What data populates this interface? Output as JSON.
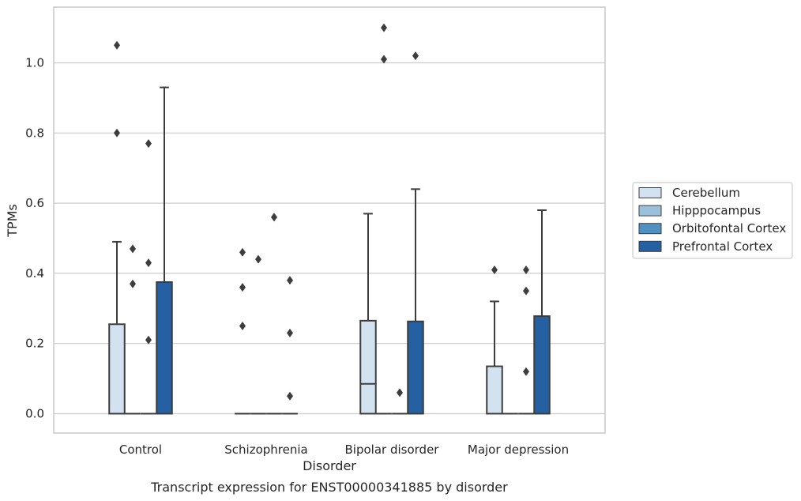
{
  "chart_data": {
    "type": "box",
    "caption": "Transcript expression for ENST00000341885 by disorder",
    "xlabel": "Disorder",
    "ylabel": "TPMs",
    "ylim": [
      -0.053,
      1.16
    ],
    "yticks": [
      0.0,
      0.2,
      0.4,
      0.6,
      0.8,
      1.0
    ],
    "ytick_labels": [
      "0.0",
      "0.2",
      "0.4",
      "0.6",
      "0.8",
      "1.0"
    ],
    "grid": "horizontal",
    "legend_placement": "right",
    "categories": [
      "Control",
      "Schizophrenia",
      "Bipolar disorder",
      "Major depression"
    ],
    "series": [
      {
        "name": "Cerebellum",
        "color": "#d3e2f1",
        "boxes": [
          {
            "q1": 0,
            "median": 0,
            "q3": 0.255,
            "whisker_low": 0,
            "whisker_high": 0.49,
            "outliers": [
              0.8,
              1.05
            ]
          },
          {
            "q1": 0,
            "median": 0,
            "q3": 0,
            "whisker_low": 0,
            "whisker_high": 0,
            "outliers": [
              0.25,
              0.36,
              0.46
            ]
          },
          {
            "q1": 0,
            "median": 0.085,
            "q3": 0.265,
            "whisker_low": 0,
            "whisker_high": 0.57,
            "outliers": []
          },
          {
            "q1": 0,
            "median": 0,
            "q3": 0.135,
            "whisker_low": 0,
            "whisker_high": 0.32,
            "outliers": [
              0.41
            ]
          }
        ]
      },
      {
        "name": "Hipppocampus",
        "color": "#9ac0dc",
        "boxes": [
          {
            "q1": 0,
            "median": 0,
            "q3": 0,
            "whisker_low": 0,
            "whisker_high": 0,
            "outliers": [
              0.37,
              0.47
            ]
          },
          {
            "q1": 0,
            "median": 0,
            "q3": 0,
            "whisker_low": 0,
            "whisker_high": 0,
            "outliers": [
              0.44
            ]
          },
          {
            "q1": 0,
            "median": 0,
            "q3": 0,
            "whisker_low": 0,
            "whisker_high": 0,
            "outliers": [
              1.01,
              1.1
            ]
          },
          {
            "q1": 0,
            "median": 0,
            "q3": 0,
            "whisker_low": 0,
            "whisker_high": 0,
            "outliers": []
          }
        ]
      },
      {
        "name": "Orbitofontal Cortex",
        "color": "#5091c1",
        "boxes": [
          {
            "q1": 0,
            "median": 0,
            "q3": 0,
            "whisker_low": 0,
            "whisker_high": 0,
            "outliers": [
              0.21,
              0.43,
              0.77
            ]
          },
          {
            "q1": 0,
            "median": 0,
            "q3": 0,
            "whisker_low": 0,
            "whisker_high": 0,
            "outliers": [
              0.56
            ]
          },
          {
            "q1": 0,
            "median": 0,
            "q3": 0,
            "whisker_low": 0,
            "whisker_high": 0,
            "outliers": [
              0.06
            ]
          },
          {
            "q1": 0,
            "median": 0,
            "q3": 0,
            "whisker_low": 0,
            "whisker_high": 0,
            "outliers": [
              0.12,
              0.35,
              0.41
            ]
          }
        ]
      },
      {
        "name": "Prefrontal Cortex",
        "color": "#2460a2",
        "boxes": [
          {
            "q1": 0,
            "median": 0,
            "q3": 0.375,
            "whisker_low": 0,
            "whisker_high": 0.93,
            "outliers": []
          },
          {
            "q1": 0,
            "median": 0,
            "q3": 0,
            "whisker_low": 0,
            "whisker_high": 0,
            "outliers": [
              0.05,
              0.23,
              0.38
            ]
          },
          {
            "q1": 0,
            "median": 0,
            "q3": 0.263,
            "whisker_low": 0,
            "whisker_high": 0.64,
            "outliers": [
              1.02
            ]
          },
          {
            "q1": 0,
            "median": 0,
            "q3": 0.278,
            "whisker_low": 0,
            "whisker_high": 0.58,
            "outliers": []
          }
        ]
      }
    ],
    "style": {
      "line_color": "#3d3d3d",
      "grid_color": "#cccccc",
      "frame_color": "#cccccc"
    }
  }
}
